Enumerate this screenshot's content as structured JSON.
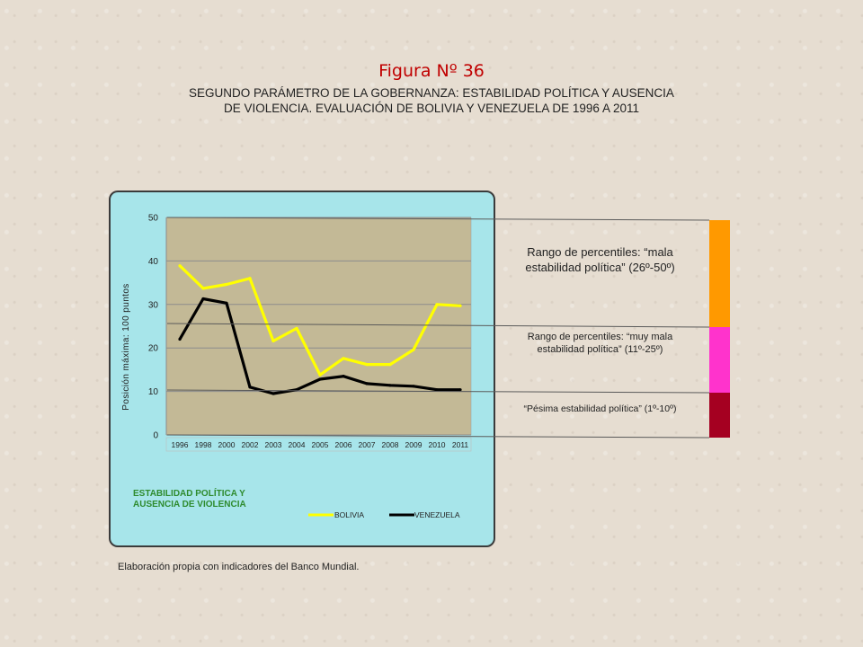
{
  "figure": {
    "title": "Figura Nº 36",
    "subtitle_line1": "SEGUNDO PARÁMETRO DE LA GOBERNANZA: ESTABILIDAD POLÍTICA Y AUSENCIA",
    "subtitle_line2": "DE VIOLENCIA. EVALUACIÓN DE BOLIVIA Y VENEZUELA DE 1996 A 2011",
    "footnote": "Elaboración propia con indicadores del Banco Mundial."
  },
  "chart_data": {
    "type": "line",
    "title": "",
    "xlabel": "",
    "ylabel": "Posición máxima: 100 puntos",
    "categories": [
      "1996",
      "1998",
      "2000",
      "2002",
      "2003",
      "2004",
      "2005",
      "2006",
      "2007",
      "2008",
      "2009",
      "2010",
      "2011"
    ],
    "ylim": [
      0,
      50
    ],
    "yticks": [
      0,
      10,
      20,
      30,
      40,
      50
    ],
    "grid": true,
    "legend_caption_line1": "ESTABILIDAD POLÍTICA Y",
    "legend_caption_line2": "AUSENCIA DE VIOLENCIA",
    "legend_position": "bottom",
    "series": [
      {
        "name": "BOLIVIA",
        "color": "#ffff00",
        "values": [
          38.9,
          33.7,
          34.6,
          36.0,
          21.6,
          24.5,
          13.8,
          17.6,
          16.2,
          16.2,
          19.6,
          30.0,
          29.7
        ]
      },
      {
        "name": "VENEZUELA",
        "color": "#000000",
        "values": [
          22.0,
          31.3,
          30.3,
          11.0,
          9.5,
          10.4,
          12.8,
          13.5,
          11.8,
          11.4,
          11.2,
          10.4,
          10.4
        ]
      }
    ]
  },
  "bands": [
    {
      "label": "Rango de percentiles: “mala estabilidad política” (26º-50º)",
      "from": 26,
      "to": 50,
      "color": "#ff9900"
    },
    {
      "label": "Rango de percentiles: “muy mala estabilidad política” (11º-25º)",
      "from": 11,
      "to": 25,
      "color": "#ff33cc"
    },
    {
      "label": "“Pésima estabilidad política” (1º-10º)",
      "from": 1,
      "to": 10,
      "color": "#a50021"
    }
  ],
  "colors": {
    "plot_area": "#c3b996",
    "panel": "#a7e5ea",
    "title": "#c00000",
    "legend_caption": "#2e8b2e"
  }
}
